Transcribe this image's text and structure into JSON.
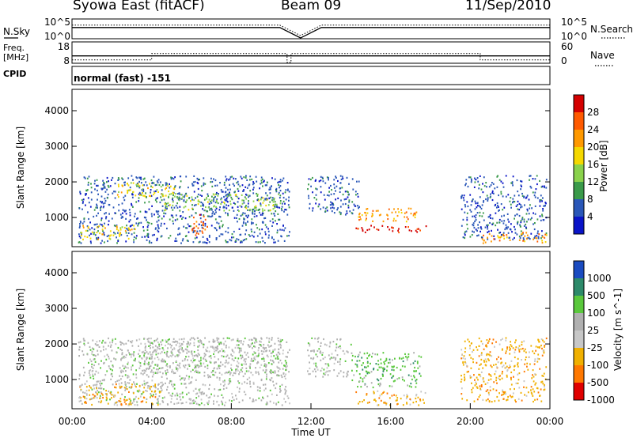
{
  "header": {
    "site": "Syowa East (fitACF)",
    "beam": "Beam 09",
    "date": "11/Sep/2010"
  },
  "side_labels": {
    "nsky": "N.Sky",
    "freq": "Freq.",
    "mhz": "[MHz]",
    "cpid": "CPID",
    "nsearch": "N.Search",
    "nave": "Nave",
    "nsky_ticks": [
      "10^5",
      "10^0"
    ],
    "nsearch_ticks": [
      "10^5",
      "10^0"
    ],
    "freq_ticks": [
      "18",
      "8"
    ],
    "nave_ticks": [
      "60",
      "0"
    ]
  },
  "cpid_label": "normal (fast) -151",
  "x_axis": {
    "label": "Time UT",
    "ticks": [
      "00:00",
      "04:00",
      "08:00",
      "12:00",
      "16:00",
      "20:00",
      "00:00"
    ]
  },
  "colors": {
    "frame": "#000000"
  },
  "chart_data": [
    {
      "type": "line",
      "panel": "noise",
      "series": [
        {
          "name": "N.Sky",
          "values": [
            1000,
            1000,
            1000,
            1000,
            1000,
            1000,
            1000,
            1000,
            1000,
            1000,
            1000,
            1,
            1000,
            1000,
            1000,
            1000,
            1000,
            1000,
            1000,
            1000,
            1000,
            1000,
            1000,
            1000
          ]
        },
        {
          "name": "N.Search",
          "values": [
            1000,
            1000,
            1000,
            1000,
            1000,
            1000,
            1000,
            1000,
            1000,
            1000,
            1000,
            1,
            1000,
            1000,
            1000,
            1000,
            1000,
            1000,
            1000,
            1000,
            1000,
            1000,
            1000,
            1000
          ]
        }
      ],
      "x_range_hours": [
        0,
        24
      ],
      "y_scale": "log",
      "ylim": [
        1,
        100000
      ]
    },
    {
      "type": "line",
      "panel": "frequency",
      "series": [
        {
          "name": "Freq.",
          "x_hours": [
            0,
            4,
            4,
            10.8,
            10.8,
            11,
            11,
            20.5,
            20.5,
            24
          ],
          "values": [
            9.3,
            9.3,
            12.5,
            12.5,
            8,
            8,
            12.5,
            12.5,
            9.3,
            9.3
          ]
        },
        {
          "name": "Nave",
          "x_hours": [
            0,
            24
          ],
          "values": [
            20,
            20
          ]
        }
      ],
      "ylim": [
        8,
        18
      ],
      "y2lim": [
        0,
        60
      ]
    },
    {
      "type": "heatmap",
      "panel": "power",
      "x_range_hours": [
        0,
        24
      ],
      "ylim": [
        180,
        4600
      ],
      "yticks": [
        1000,
        2000,
        3000,
        4000
      ],
      "ylabel": "Slant Range [km]",
      "colorbar": {
        "label": "Power [dB]",
        "ticks": [
          28,
          24,
          20,
          16,
          12,
          8,
          4
        ],
        "colors": [
          "#d40000",
          "#ff5a00",
          "#ff9900",
          "#f5d800",
          "#8ad24c",
          "#3a9a4a",
          "#2a57b8",
          "#0a14c8"
        ]
      },
      "data_gap_hours": [
        10.9,
        11.8
      ],
      "scatter_regions": [
        {
          "t0": 0.3,
          "t1": 10.9,
          "r0": 300,
          "r1": 2200,
          "level": 6
        },
        {
          "t0": 11.8,
          "t1": 14.4,
          "r0": 1100,
          "r1": 2200,
          "level": 6
        },
        {
          "t0": 19.5,
          "t1": 23.8,
          "r0": 400,
          "r1": 2200,
          "level": 6
        },
        {
          "t0": 0.4,
          "t1": 3.2,
          "r0": 400,
          "r1": 800,
          "level": 3
        },
        {
          "t0": 2.2,
          "t1": 5.2,
          "r0": 1600,
          "r1": 2000,
          "level": 3
        },
        {
          "t0": 4.5,
          "t1": 10.5,
          "r0": 1200,
          "r1": 1700,
          "level": 4
        },
        {
          "t0": 6.0,
          "t1": 6.8,
          "r0": 500,
          "r1": 1200,
          "level": 1
        },
        {
          "t0": 14.2,
          "t1": 17.8,
          "r0": 600,
          "r1": 800,
          "level": 0
        },
        {
          "t0": 14.3,
          "t1": 17.3,
          "r0": 900,
          "r1": 1300,
          "level": 2
        },
        {
          "t0": 20.5,
          "t1": 23.8,
          "r0": 300,
          "r1": 600,
          "level": 2
        }
      ]
    },
    {
      "type": "heatmap",
      "panel": "velocity",
      "x_range_hours": [
        0,
        24
      ],
      "ylim": [
        180,
        4600
      ],
      "yticks": [
        1000,
        2000,
        3000,
        4000
      ],
      "ylabel": "Slant Range [km]",
      "colorbar": {
        "label": "Velocity [m s^-1]",
        "ticks": [
          1000,
          500,
          100,
          25,
          -25,
          -100,
          -500,
          -1000
        ],
        "colors": [
          "#1a4bc0",
          "#2d8a6a",
          "#5ac83c",
          "#b0b0b0",
          "#c7c7c7",
          "#f0b000",
          "#ff7800",
          "#e00000"
        ]
      },
      "data_gap_hours": [
        10.9,
        11.8
      ],
      "scatter_regions": [
        {
          "t0": 0.3,
          "t1": 10.9,
          "r0": 300,
          "r1": 2200,
          "level": 3
        },
        {
          "t0": 3.5,
          "t1": 10.5,
          "r0": 1200,
          "r1": 2200,
          "level": 3
        },
        {
          "t0": 0.3,
          "t1": 4.5,
          "r0": 300,
          "r1": 900,
          "level": 5
        },
        {
          "t0": 14.0,
          "t1": 17.5,
          "r0": 800,
          "r1": 1800,
          "level": 2
        },
        {
          "t0": 11.8,
          "t1": 14.0,
          "r0": 1100,
          "r1": 2200,
          "level": 3
        },
        {
          "t0": 19.5,
          "t1": 23.8,
          "r0": 400,
          "r1": 2200,
          "level": 5
        },
        {
          "t0": 14.2,
          "t1": 17.8,
          "r0": 300,
          "r1": 700,
          "level": 5
        }
      ]
    }
  ]
}
